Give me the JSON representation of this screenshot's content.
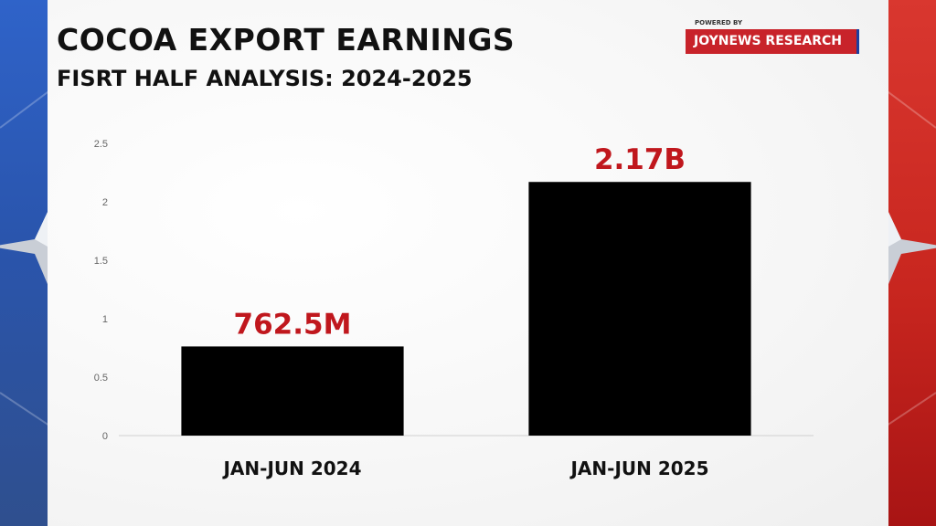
{
  "header": {
    "title": "COCOA EXPORT EARNINGS",
    "subtitle": "FISRT HALF ANALYSIS: 2024-2025",
    "powered_by": "POWERED BY",
    "brand": "JOYNEWS RESEARCH"
  },
  "colors": {
    "bar": "#000000",
    "data_label": "#c0171d",
    "brand_bg": "#c8232a",
    "left_stripe": "#2f5fc4",
    "right_stripe": "#d0271f"
  },
  "chart_data": {
    "type": "bar",
    "categories": [
      "JAN-JUN 2024",
      "JAN-JUN 2025"
    ],
    "values": [
      0.7625,
      2.17
    ],
    "data_labels": [
      "762.5M",
      "2.17B"
    ],
    "ylim": [
      0,
      2.5
    ],
    "yticks": [
      "0",
      "0.5",
      "1",
      "1.5",
      "2",
      "2.5"
    ],
    "grid": false,
    "legend": "none"
  }
}
